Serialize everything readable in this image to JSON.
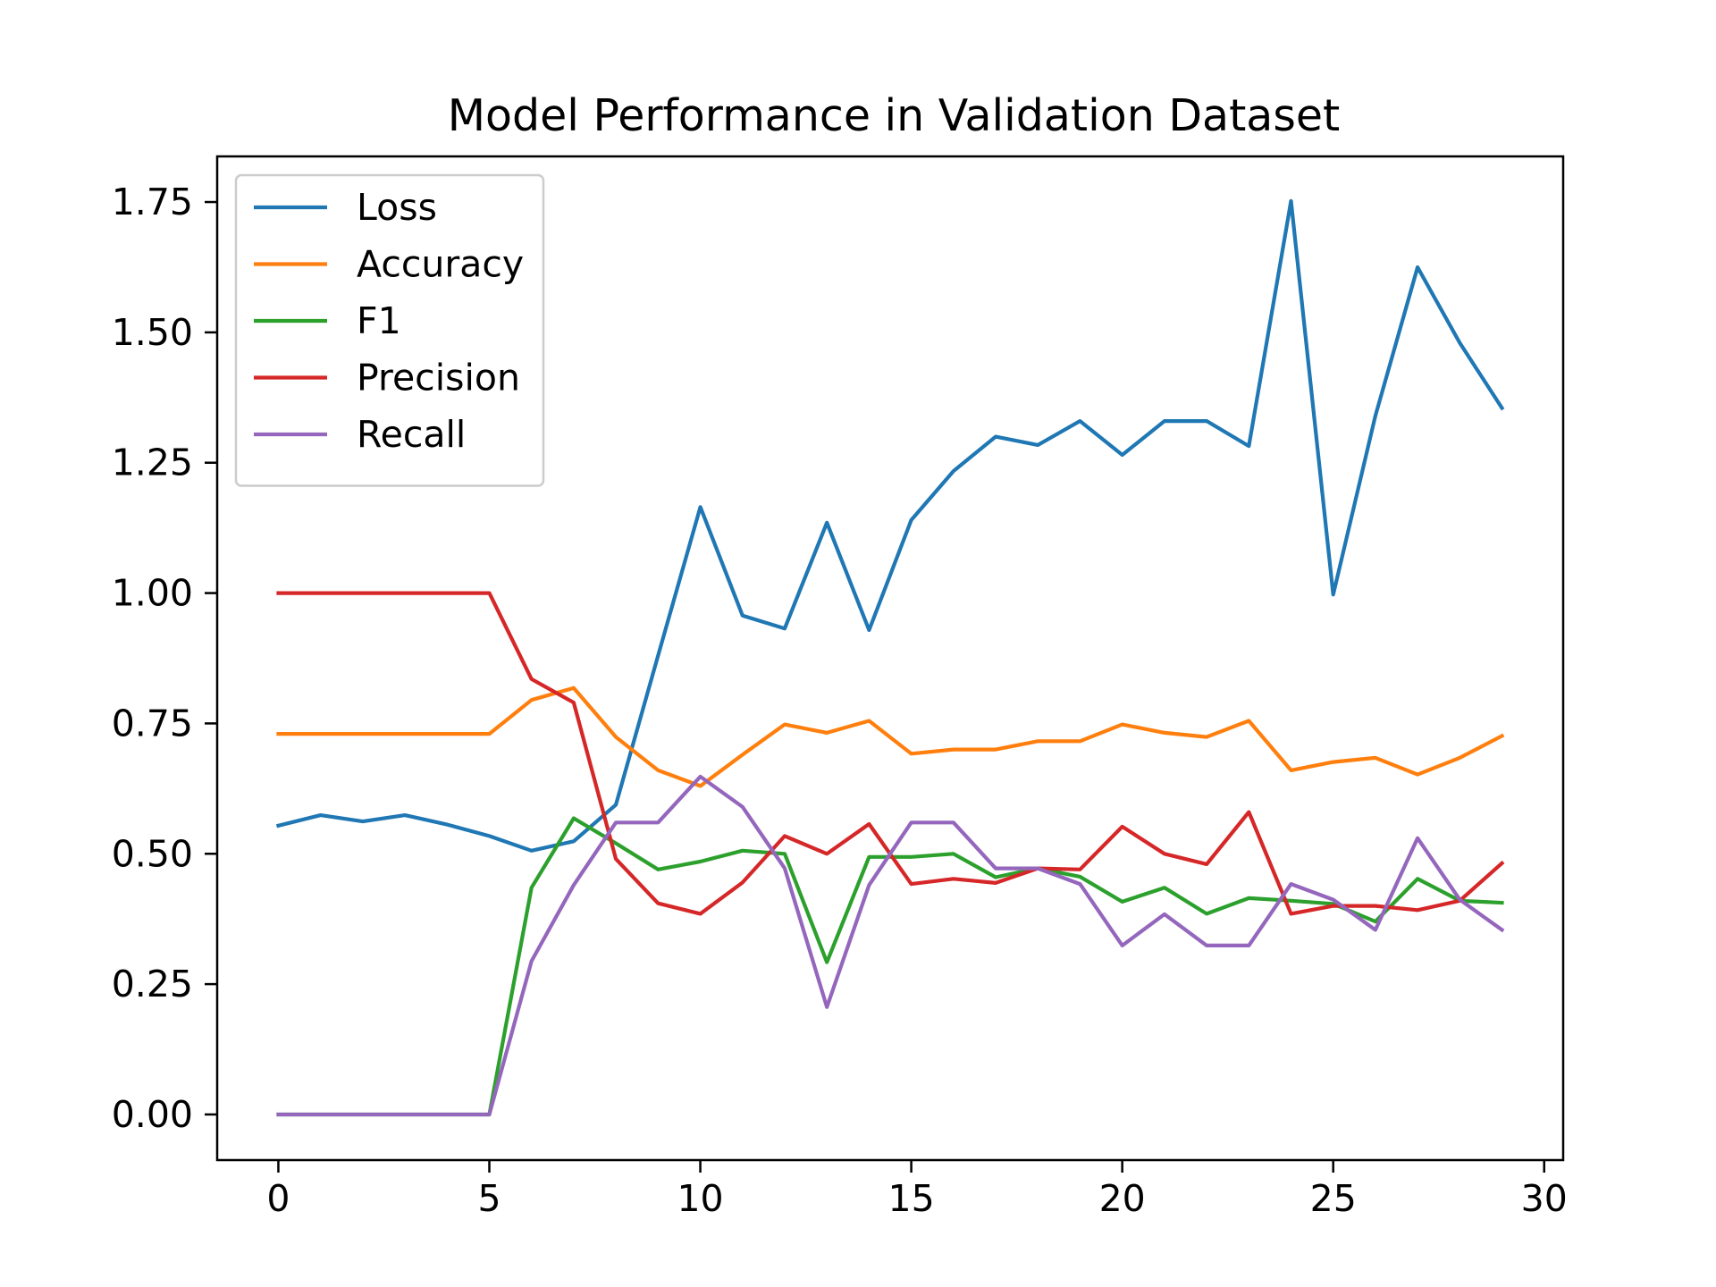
{
  "chart_data": {
    "type": "line",
    "title": "Model Performance in Validation Dataset",
    "xlabel": "",
    "ylabel": "",
    "xlim": [
      -1.45,
      30.45
    ],
    "ylim": [
      -0.0875,
      1.8375
    ],
    "xticks": [
      0,
      5,
      10,
      15,
      20,
      25,
      30
    ],
    "xtick_labels": [
      "0",
      "5",
      "10",
      "15",
      "20",
      "25",
      "30"
    ],
    "yticks": [
      0.0,
      0.25,
      0.5,
      0.75,
      1.0,
      1.25,
      1.5,
      1.75
    ],
    "ytick_labels": [
      "0.00",
      "0.25",
      "0.50",
      "0.75",
      "1.00",
      "1.25",
      "1.50",
      "1.75"
    ],
    "grid": false,
    "legend_position": "upper-left",
    "x": [
      0,
      1,
      2,
      3,
      4,
      5,
      6,
      7,
      8,
      9,
      10,
      11,
      12,
      13,
      14,
      15,
      16,
      17,
      18,
      19,
      20,
      21,
      22,
      23,
      24,
      25,
      26,
      27,
      28,
      29
    ],
    "series": [
      {
        "name": "Loss",
        "color": "#1f77b4",
        "values": [
          0.554,
          0.574,
          0.562,
          0.574,
          0.556,
          0.534,
          0.506,
          0.524,
          0.594,
          0.88,
          1.165,
          0.957,
          0.932,
          1.135,
          0.929,
          1.14,
          1.234,
          1.3,
          1.284,
          1.33,
          1.265,
          1.33,
          1.33,
          1.282,
          1.752,
          0.997,
          1.34,
          1.625,
          1.48,
          1.355
        ]
      },
      {
        "name": "Accuracy",
        "color": "#ff7f0e",
        "values": [
          0.73,
          0.73,
          0.73,
          0.73,
          0.73,
          0.73,
          0.795,
          0.818,
          0.724,
          0.66,
          0.63,
          0.69,
          0.748,
          0.732,
          0.755,
          0.692,
          0.7,
          0.7,
          0.716,
          0.716,
          0.748,
          0.732,
          0.724,
          0.755,
          0.66,
          0.676,
          0.684,
          0.652,
          0.684,
          0.726
        ]
      },
      {
        "name": "F1",
        "color": "#2ca02c",
        "values": [
          0.0,
          0.0,
          0.0,
          0.0,
          0.0,
          0.0,
          0.435,
          0.568,
          0.52,
          0.47,
          0.485,
          0.506,
          0.5,
          0.292,
          0.494,
          0.494,
          0.5,
          0.455,
          0.472,
          0.456,
          0.408,
          0.435,
          0.385,
          0.415,
          0.41,
          0.404,
          0.37,
          0.452,
          0.41,
          0.406
        ]
      },
      {
        "name": "Precision",
        "color": "#d62728",
        "values": [
          1.0,
          1.0,
          1.0,
          1.0,
          1.0,
          1.0,
          0.835,
          0.79,
          0.49,
          0.405,
          0.385,
          0.445,
          0.534,
          0.5,
          0.557,
          0.442,
          0.452,
          0.444,
          0.472,
          0.47,
          0.552,
          0.5,
          0.48,
          0.58,
          0.385,
          0.4,
          0.4,
          0.392,
          0.41,
          0.482
        ]
      },
      {
        "name": "Recall",
        "color": "#9467bd",
        "values": [
          0.0,
          0.0,
          0.0,
          0.0,
          0.0,
          0.0,
          0.294,
          0.44,
          0.56,
          0.56,
          0.648,
          0.59,
          0.472,
          0.206,
          0.44,
          0.56,
          0.56,
          0.472,
          0.472,
          0.442,
          0.324,
          0.384,
          0.324,
          0.324,
          0.442,
          0.412,
          0.354,
          0.53,
          0.412,
          0.354
        ]
      }
    ]
  }
}
